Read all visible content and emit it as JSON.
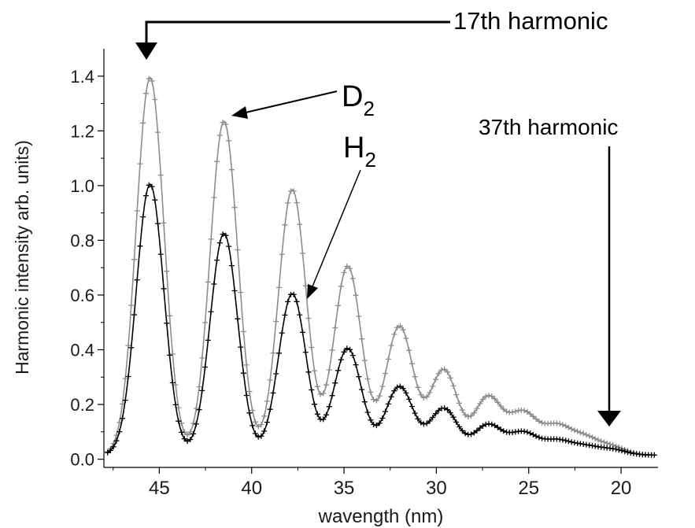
{
  "chart_data": {
    "type": "line",
    "xlabel": "wavength (nm)",
    "ylabel": "Harmonic intensity arb. units)",
    "xlim": [
      48,
      18
    ],
    "ylim": [
      -0.03,
      1.5
    ],
    "x_reversed": true,
    "x_ticks": [
      45,
      40,
      35,
      30,
      25,
      20
    ],
    "x_tick_labels": [
      "45",
      "40",
      "35",
      "30",
      "25",
      "20"
    ],
    "y_ticks": [
      0.0,
      0.2,
      0.4,
      0.6,
      0.8,
      1.0,
      1.2,
      1.4
    ],
    "y_tick_labels": [
      "0.0",
      "0.2",
      "0.4",
      "0.6",
      "0.8",
      "1.0",
      "1.2",
      "1.4"
    ],
    "grid": false,
    "marker": "+",
    "series": [
      {
        "name": "D2",
        "color": "#8c8c8c",
        "peaks": [
          {
            "x": 45.5,
            "y": 1.38
          },
          {
            "x": 41.5,
            "y": 1.22
          },
          {
            "x": 37.8,
            "y": 0.97
          },
          {
            "x": 34.8,
            "y": 0.69
          },
          {
            "x": 32.0,
            "y": 0.47
          },
          {
            "x": 29.6,
            "y": 0.31
          },
          {
            "x": 27.2,
            "y": 0.21
          },
          {
            "x": 25.3,
            "y": 0.15
          },
          {
            "x": 23.5,
            "y": 0.1
          },
          {
            "x": 22.0,
            "y": 0.06
          },
          {
            "x": 20.5,
            "y": 0.03
          }
        ]
      },
      {
        "name": "H2",
        "color": "#000000",
        "peaks": [
          {
            "x": 45.5,
            "y": 0.99
          },
          {
            "x": 41.5,
            "y": 0.81
          },
          {
            "x": 37.8,
            "y": 0.59
          },
          {
            "x": 34.8,
            "y": 0.39
          },
          {
            "x": 32.0,
            "y": 0.25
          },
          {
            "x": 29.6,
            "y": 0.17
          },
          {
            "x": 27.2,
            "y": 0.11
          },
          {
            "x": 25.3,
            "y": 0.08
          },
          {
            "x": 23.5,
            "y": 0.05
          },
          {
            "x": 22.0,
            "y": 0.03
          },
          {
            "x": 20.5,
            "y": 0.02
          }
        ]
      }
    ],
    "annotations": {
      "harmonic17": "17th harmonic",
      "harmonic37": "37th harmonic",
      "d2_main": "D",
      "d2_sub": "2",
      "h2_main": "H",
      "h2_sub": "2"
    }
  }
}
